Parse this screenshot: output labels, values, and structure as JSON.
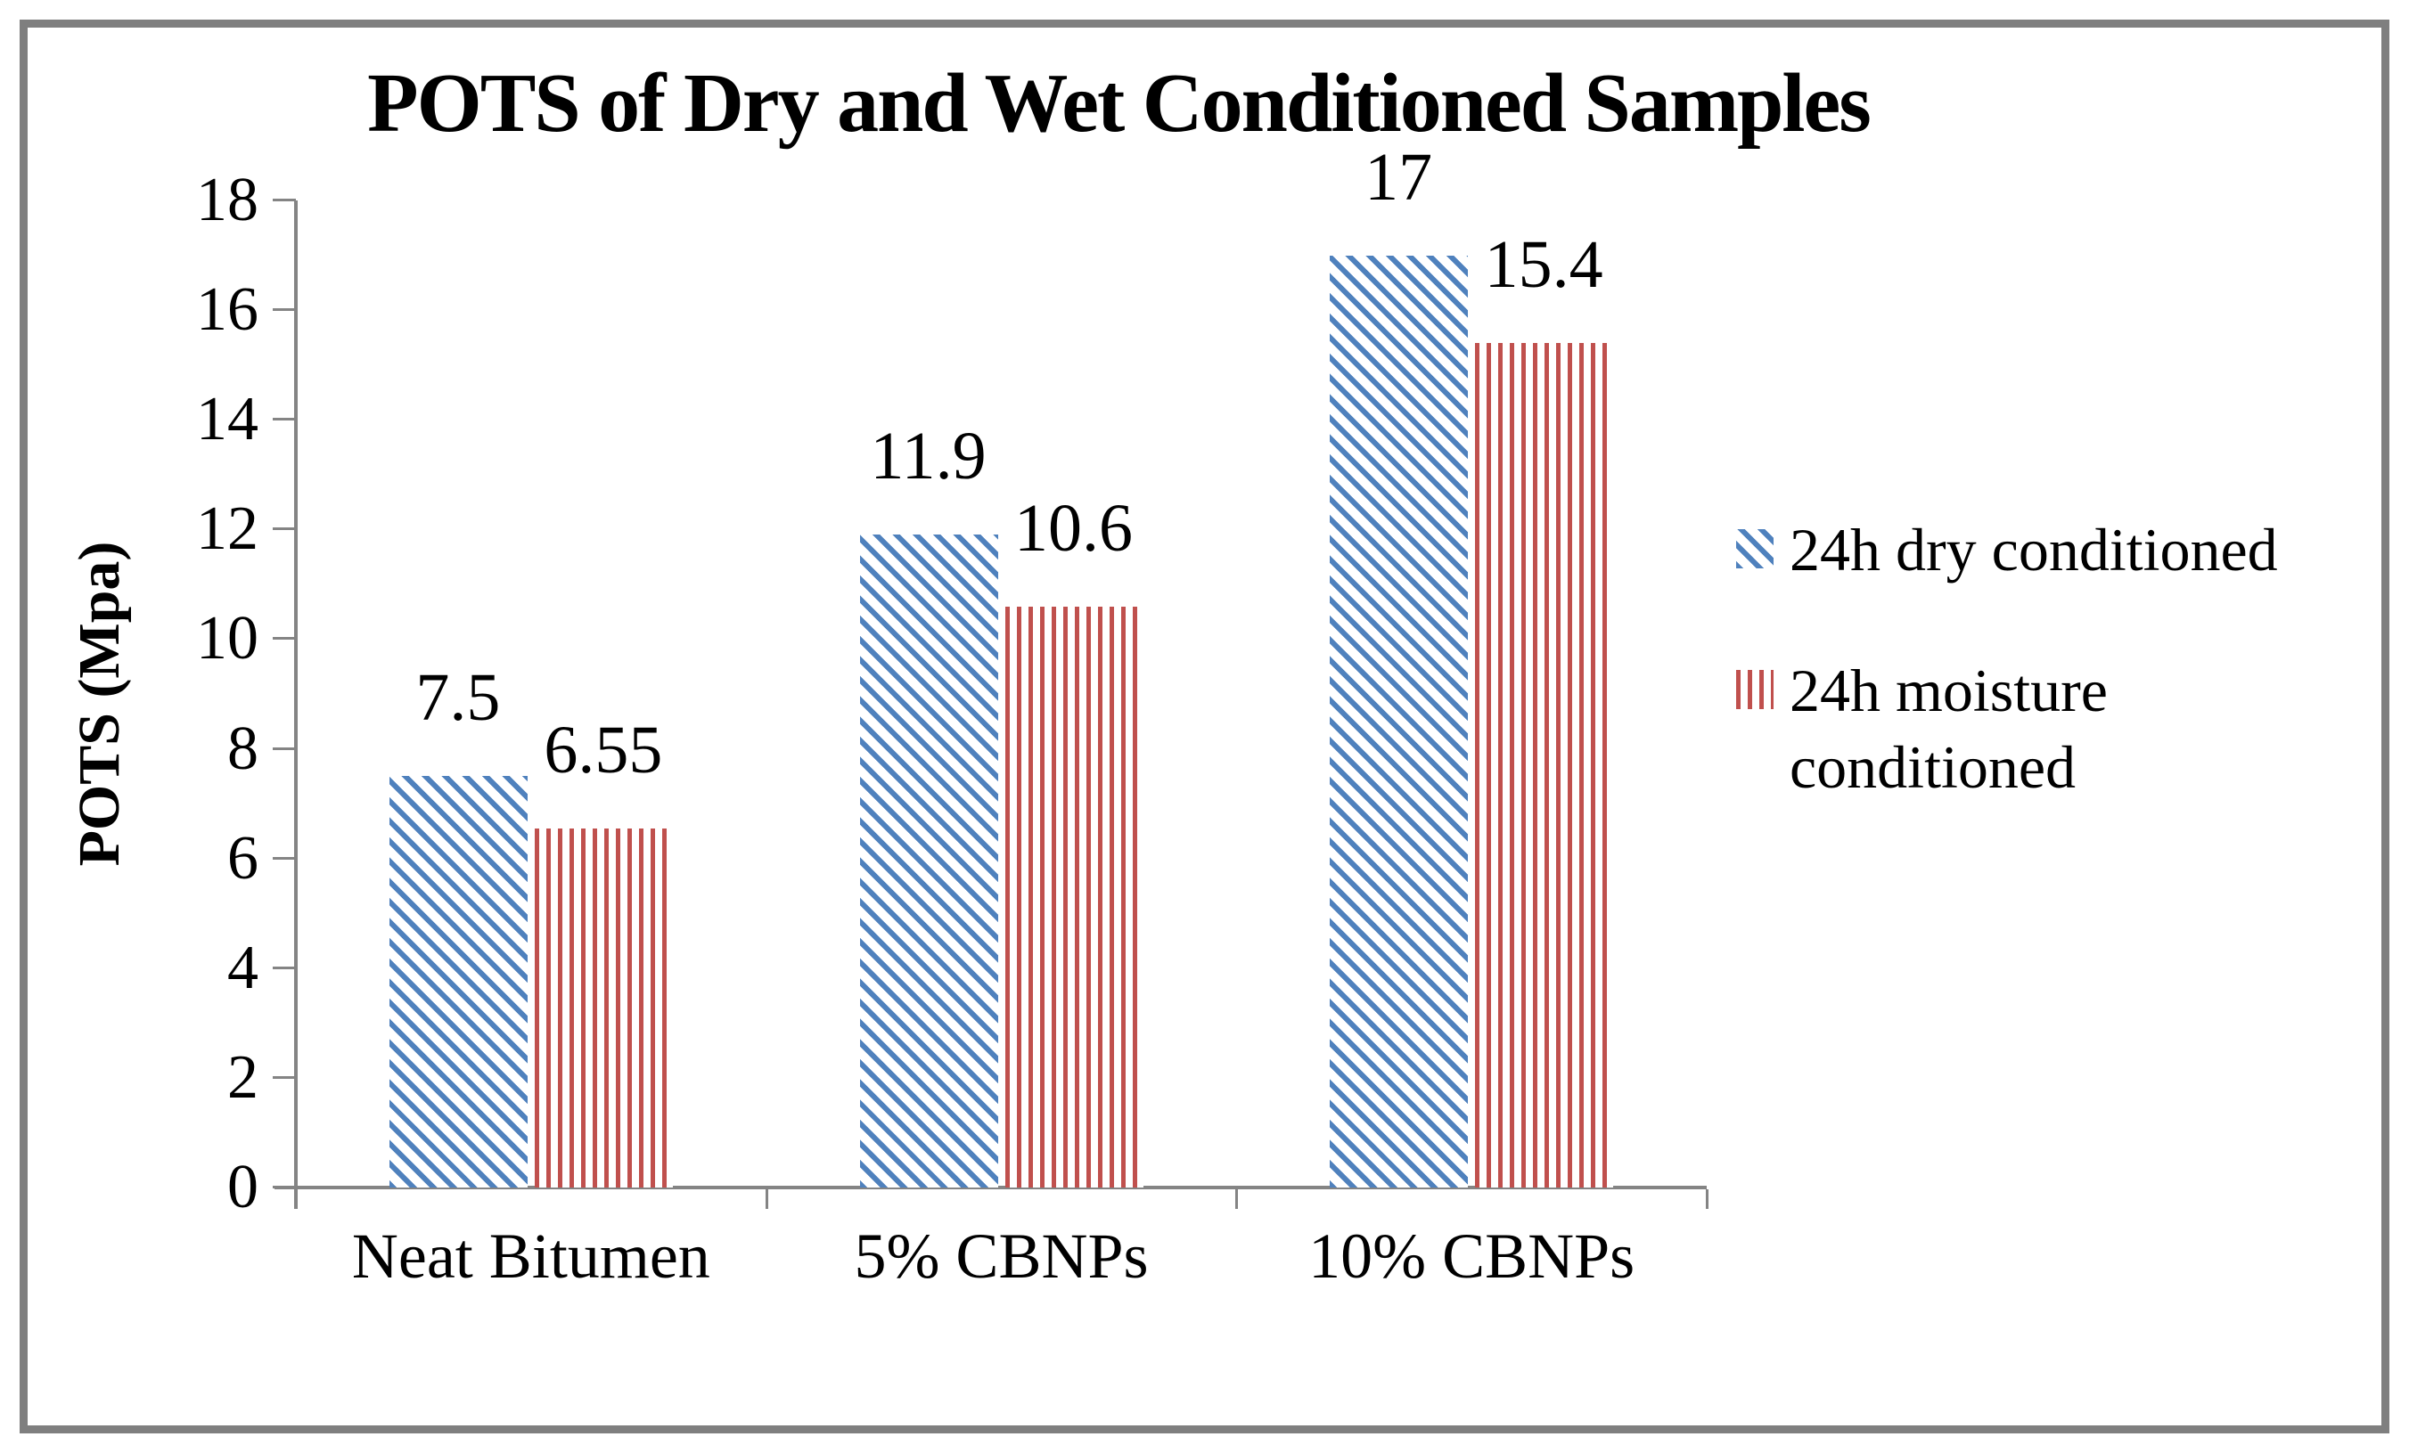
{
  "frame": {
    "border_color": "#7f7f7f"
  },
  "axis_color": "#848484",
  "chart_data": {
    "type": "bar",
    "title": "POTS of Dry and Wet Conditioned Samples",
    "categories": [
      "Neat Bitumen",
      "5% CBNPs",
      "10% CBNPs"
    ],
    "series": [
      {
        "name": "24h dry conditioned",
        "values": [
          7.5,
          11.9,
          17
        ],
        "color": "#4F81BD",
        "hatch": "diagonal"
      },
      {
        "name": "24h moisture conditioned",
        "values": [
          6.55,
          10.6,
          15.4
        ],
        "color": "#C0504D",
        "hatch": "vertical"
      }
    ],
    "data_labels": [
      [
        "7.5",
        "11.9",
        "17"
      ],
      [
        "6.55",
        "10.6",
        "15.4"
      ]
    ],
    "xlabel": "",
    "ylabel": "POTS (Mpa)",
    "ylim": [
      0,
      18
    ],
    "ytick_step": 2,
    "grid": false,
    "legend_position": "right",
    "label_color": "#000000"
  }
}
